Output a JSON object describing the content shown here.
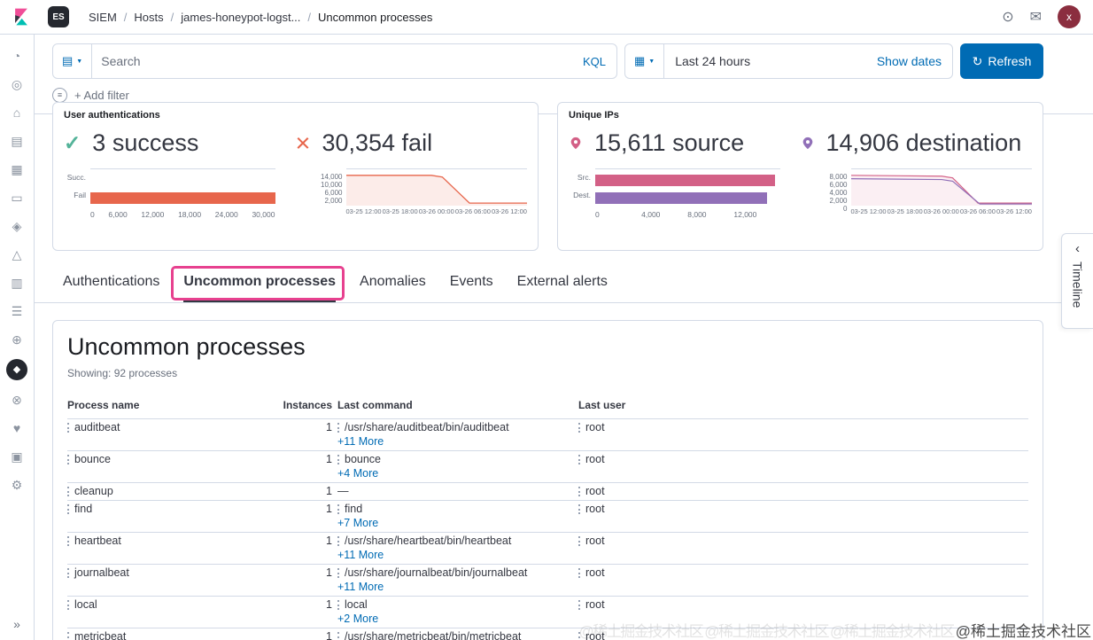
{
  "colors": {
    "primary": "#006BB4",
    "success": "#54B399",
    "fail": "#E7664C",
    "source": "#D36086",
    "destination": "#9170B8",
    "highlight": "#E7418F"
  },
  "topbar": {
    "space_badge": "ES",
    "breadcrumbs": [
      "SIEM",
      "Hosts",
      "james-honeypot-logst...",
      "Uncommon processes"
    ],
    "avatar_initial": "x"
  },
  "icons": {
    "saved_query": "▤",
    "caret_down": "▼",
    "calendar": "▦",
    "refresh": "↻",
    "chevron_left": "‹",
    "collapse": "»",
    "filter_group": "≡",
    "globe": "⊙",
    "mail": "✉",
    "check": "✓",
    "cross": "×"
  },
  "filters": {
    "search_placeholder": "Search",
    "kql_label": "KQL",
    "time_range": "Last 24 hours",
    "show_dates_label": "Show dates",
    "refresh_label": "Refresh",
    "add_filter_label": "+ Add filter"
  },
  "kpi": {
    "auth": {
      "title": "User authentications",
      "stats": [
        {
          "value": "3",
          "label": "success"
        },
        {
          "value": "30,354",
          "label": "fail"
        }
      ],
      "bar_chart": {
        "type": "bar",
        "categories": [
          "Succ.",
          "Fail"
        ],
        "values": [
          3,
          30354
        ],
        "axis_max": 30354,
        "ticks": [
          "0",
          "6,000",
          "12,000",
          "18,000",
          "24,000",
          "30,000"
        ]
      },
      "area_chart": {
        "type": "area",
        "y_ticks": [
          "14,000",
          "10,000",
          "6,000",
          "2,000"
        ],
        "x_ticks": [
          "03-25 12:00",
          "03-25 18:00",
          "03-26 00:00",
          "03-26 06:00",
          "03-26 12:00"
        ]
      }
    },
    "ips": {
      "title": "Unique IPs",
      "stats": [
        {
          "value": "15,611",
          "label": "source"
        },
        {
          "value": "14,906",
          "label": "destination"
        }
      ],
      "bar_chart": {
        "type": "bar",
        "categories": [
          "Src.",
          "Dest."
        ],
        "values": [
          15611,
          14906
        ],
        "axis_max": 16000,
        "ticks": [
          "0",
          "4,000",
          "8,000",
          "12,000"
        ]
      },
      "area_chart": {
        "type": "area",
        "y_ticks": [
          "8,000",
          "6,000",
          "4,000",
          "2,000",
          "0"
        ],
        "x_ticks": [
          "03-25 12:00",
          "03-25 18:00",
          "03-26 00:00",
          "03-26 06:00",
          "03-26 12:00"
        ]
      }
    }
  },
  "tabs": [
    {
      "label": "Authentications",
      "selected": false
    },
    {
      "label": "Uncommon processes",
      "selected": true
    },
    {
      "label": "Anomalies",
      "selected": false
    },
    {
      "label": "Events",
      "selected": false
    },
    {
      "label": "External alerts",
      "selected": false
    }
  ],
  "timeline": {
    "label": "Timeline"
  },
  "main": {
    "title": "Uncommon processes",
    "showing": "Showing: 92 processes",
    "table": {
      "headers": [
        "Process name",
        "Instances",
        "Last command",
        "Last user"
      ],
      "rows": [
        {
          "process": "auditbeat",
          "instances": "1",
          "command": "/usr/share/auditbeat/bin/auditbeat",
          "more": "+11 More",
          "user": "root"
        },
        {
          "process": "bounce",
          "instances": "1",
          "command": "bounce",
          "more": "+4 More",
          "user": "root"
        },
        {
          "process": "cleanup",
          "instances": "1",
          "command": "—",
          "more": "",
          "user": "root"
        },
        {
          "process": "find",
          "instances": "1",
          "command": "find",
          "more": "+7 More",
          "user": "root"
        },
        {
          "process": "heartbeat",
          "instances": "1",
          "command": "/usr/share/heartbeat/bin/heartbeat",
          "more": "+11 More",
          "user": "root"
        },
        {
          "process": "journalbeat",
          "instances": "1",
          "command": "/usr/share/journalbeat/bin/journalbeat",
          "more": "+11 More",
          "user": "root"
        },
        {
          "process": "local",
          "instances": "1",
          "command": "local",
          "more": "+2 More",
          "user": "root"
        },
        {
          "process": "metricbeat",
          "instances": "1",
          "command": "/usr/share/metricbeat/bin/metricbeat",
          "more": "",
          "user": "root"
        }
      ]
    }
  },
  "sidebar": {
    "icons": [
      {
        "name": "recently-viewed",
        "glyph": "◔"
      },
      {
        "name": "discover",
        "glyph": "◎"
      },
      {
        "name": "home",
        "glyph": "⌂"
      },
      {
        "name": "visualize",
        "glyph": "▤"
      },
      {
        "name": "dashboard",
        "glyph": "▦"
      },
      {
        "name": "canvas",
        "glyph": "▭"
      },
      {
        "name": "maps",
        "glyph": "◈"
      },
      {
        "name": "machine-learning",
        "glyph": "△"
      },
      {
        "name": "infrastructure",
        "glyph": "▥"
      },
      {
        "name": "logs",
        "glyph": "☰"
      },
      {
        "name": "apm",
        "glyph": "⊕"
      },
      {
        "name": "siem",
        "glyph": "◆"
      },
      {
        "name": "dev-tools",
        "glyph": "⊗"
      },
      {
        "name": "uptime",
        "glyph": "♥"
      },
      {
        "name": "monitoring",
        "glyph": "▣"
      },
      {
        "name": "management",
        "glyph": "⚙"
      }
    ]
  },
  "watermark": {
    "text": "@稀土掘金技术社区"
  }
}
